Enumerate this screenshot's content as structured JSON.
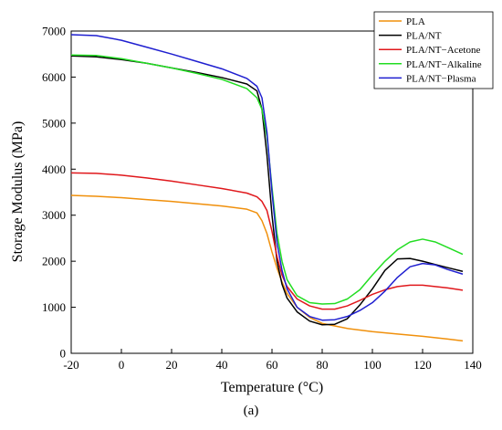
{
  "caption": "(a)",
  "chart_data": {
    "type": "line",
    "title": "",
    "xlabel": "Temperature (°C)",
    "ylabel": "Storage Modulus (MPa)",
    "xlim": [
      -20,
      140
    ],
    "ylim": [
      0,
      7000
    ],
    "xticks": [
      -20,
      0,
      20,
      40,
      60,
      80,
      100,
      120,
      140
    ],
    "yticks": [
      0,
      1000,
      2000,
      3000,
      4000,
      5000,
      6000,
      7000
    ],
    "grid": false,
    "legend_position": "top-right",
    "series": [
      {
        "name": "PLA",
        "color": "#f0900c",
        "x": [
          -20,
          -10,
          0,
          10,
          20,
          30,
          40,
          50,
          54,
          56,
          58,
          60,
          62,
          64,
          66,
          70,
          75,
          80,
          90,
          100,
          110,
          120,
          130,
          136
        ],
        "y": [
          3430,
          3410,
          3380,
          3340,
          3300,
          3250,
          3200,
          3130,
          3050,
          2880,
          2600,
          2200,
          1850,
          1550,
          1300,
          1000,
          780,
          650,
          540,
          470,
          420,
          370,
          310,
          270
        ]
      },
      {
        "name": "PLA/NT",
        "color": "#000000",
        "x": [
          -20,
          -10,
          0,
          10,
          20,
          30,
          40,
          50,
          54,
          56,
          58,
          60,
          62,
          64,
          66,
          70,
          75,
          80,
          85,
          90,
          95,
          100,
          105,
          110,
          115,
          120,
          125,
          130,
          136
        ],
        "y": [
          6460,
          6440,
          6380,
          6300,
          6200,
          6100,
          5990,
          5850,
          5700,
          5300,
          4300,
          3000,
          2000,
          1500,
          1200,
          900,
          700,
          620,
          630,
          750,
          1050,
          1400,
          1800,
          2050,
          2060,
          2000,
          1930,
          1860,
          1780
        ]
      },
      {
        "name": "PLA/NT−Acetone",
        "color": "#e0181c",
        "x": [
          -20,
          -10,
          0,
          10,
          20,
          30,
          40,
          50,
          54,
          56,
          58,
          60,
          62,
          64,
          66,
          70,
          75,
          80,
          85,
          90,
          95,
          100,
          105,
          110,
          115,
          120,
          125,
          130,
          136
        ],
        "y": [
          3920,
          3910,
          3870,
          3810,
          3740,
          3660,
          3580,
          3480,
          3400,
          3300,
          3100,
          2650,
          2100,
          1700,
          1450,
          1180,
          1030,
          960,
          960,
          1030,
          1150,
          1280,
          1380,
          1450,
          1480,
          1480,
          1450,
          1420,
          1370
        ]
      },
      {
        "name": "PLA/NT−Alkaline",
        "color": "#22dd22",
        "x": [
          -20,
          -10,
          0,
          10,
          20,
          30,
          40,
          50,
          54,
          56,
          58,
          60,
          62,
          64,
          66,
          70,
          75,
          80,
          85,
          90,
          95,
          100,
          105,
          110,
          115,
          120,
          125,
          130,
          136
        ],
        "y": [
          6480,
          6470,
          6400,
          6300,
          6200,
          6080,
          5950,
          5750,
          5550,
          5300,
          4700,
          3600,
          2600,
          2000,
          1600,
          1250,
          1100,
          1070,
          1080,
          1180,
          1380,
          1700,
          2000,
          2250,
          2420,
          2480,
          2420,
          2300,
          2150
        ]
      },
      {
        "name": "PLA/NT−Plasma",
        "color": "#1f1fd0",
        "x": [
          -20,
          -10,
          0,
          10,
          20,
          30,
          40,
          50,
          54,
          56,
          58,
          60,
          62,
          64,
          66,
          70,
          75,
          80,
          85,
          90,
          95,
          100,
          105,
          110,
          115,
          120,
          125,
          130,
          136
        ],
        "y": [
          6920,
          6900,
          6800,
          6650,
          6500,
          6340,
          6180,
          5970,
          5800,
          5550,
          4800,
          3500,
          2400,
          1800,
          1400,
          1000,
          800,
          720,
          730,
          800,
          930,
          1100,
          1350,
          1650,
          1880,
          1950,
          1920,
          1820,
          1720
        ]
      }
    ]
  }
}
